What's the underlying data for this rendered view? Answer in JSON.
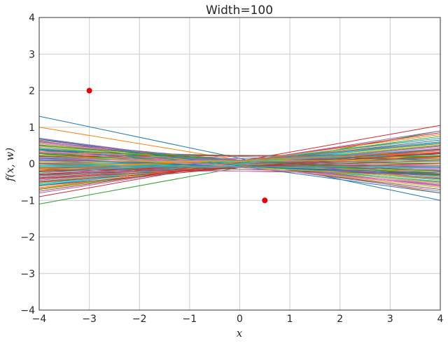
{
  "chart_data": {
    "type": "line",
    "title": "Width=100",
    "xlabel": "x",
    "ylabel": "f(x, w)",
    "xlim": [
      -4,
      4
    ],
    "ylim": [
      -4,
      4
    ],
    "xticks": [
      -4,
      -3,
      -2,
      -1,
      0,
      1,
      2,
      3,
      4
    ],
    "yticks": [
      -4,
      -3,
      -2,
      -1,
      0,
      1,
      2,
      3,
      4
    ],
    "grid": true,
    "series_count": 100,
    "series_note": "100 linear functions f(x,w), each drawn from x=-4 to x=4; values are [f(-4), f(4)]",
    "series": [
      {
        "values": [
          1.3,
          -1.0
        ]
      },
      {
        "values": [
          1.0,
          -0.8
        ]
      },
      {
        "values": [
          -1.1,
          0.9
        ]
      },
      {
        "values": [
          -0.9,
          1.05
        ]
      },
      {
        "values": [
          0.7,
          -0.75
        ]
      },
      {
        "values": [
          0.65,
          -0.6
        ]
      },
      {
        "values": [
          0.6,
          -0.55
        ]
      },
      {
        "values": [
          0.55,
          -0.5
        ]
      },
      {
        "values": [
          0.5,
          -0.45
        ]
      },
      {
        "values": [
          0.45,
          -0.4
        ]
      },
      {
        "values": [
          0.4,
          -0.35
        ]
      },
      {
        "values": [
          0.35,
          -0.3
        ]
      },
      {
        "values": [
          0.3,
          -0.25
        ]
      },
      {
        "values": [
          0.25,
          -0.2
        ]
      },
      {
        "values": [
          0.2,
          -0.15
        ]
      },
      {
        "values": [
          0.15,
          -0.1
        ]
      },
      {
        "values": [
          0.1,
          -0.05
        ]
      },
      {
        "values": [
          0.05,
          0.0
        ]
      },
      {
        "values": [
          0.0,
          0.05
        ]
      },
      {
        "values": [
          -0.05,
          0.1
        ]
      },
      {
        "values": [
          -0.1,
          0.15
        ]
      },
      {
        "values": [
          -0.15,
          0.2
        ]
      },
      {
        "values": [
          -0.2,
          0.25
        ]
      },
      {
        "values": [
          -0.25,
          0.3
        ]
      },
      {
        "values": [
          -0.3,
          0.35
        ]
      },
      {
        "values": [
          -0.35,
          0.4
        ]
      },
      {
        "values": [
          -0.4,
          0.45
        ]
      },
      {
        "values": [
          -0.45,
          0.5
        ]
      },
      {
        "values": [
          -0.5,
          0.55
        ]
      },
      {
        "values": [
          -0.55,
          0.6
        ]
      },
      {
        "values": [
          -0.6,
          0.65
        ]
      },
      {
        "values": [
          -0.65,
          0.7
        ]
      },
      {
        "values": [
          -0.7,
          0.75
        ]
      },
      {
        "values": [
          -0.75,
          0.85
        ]
      },
      {
        "values": [
          -0.8,
          0.9
        ]
      },
      {
        "values": [
          0.62,
          -0.7
        ]
      },
      {
        "values": [
          0.58,
          -0.62
        ]
      },
      {
        "values": [
          0.52,
          -0.58
        ]
      },
      {
        "values": [
          0.48,
          -0.52
        ]
      },
      {
        "values": [
          0.42,
          -0.48
        ]
      },
      {
        "values": [
          0.38,
          -0.42
        ]
      },
      {
        "values": [
          0.32,
          -0.38
        ]
      },
      {
        "values": [
          0.28,
          -0.32
        ]
      },
      {
        "values": [
          0.22,
          -0.28
        ]
      },
      {
        "values": [
          0.18,
          -0.22
        ]
      },
      {
        "values": [
          0.12,
          -0.18
        ]
      },
      {
        "values": [
          0.08,
          -0.12
        ]
      },
      {
        "values": [
          0.02,
          -0.08
        ]
      },
      {
        "values": [
          -0.02,
          0.02
        ]
      },
      {
        "values": [
          -0.08,
          0.08
        ]
      },
      {
        "values": [
          -0.12,
          0.12
        ]
      },
      {
        "values": [
          -0.18,
          0.18
        ]
      },
      {
        "values": [
          -0.22,
          0.22
        ]
      },
      {
        "values": [
          -0.28,
          0.28
        ]
      },
      {
        "values": [
          -0.32,
          0.32
        ]
      },
      {
        "values": [
          -0.38,
          0.38
        ]
      },
      {
        "values": [
          -0.42,
          0.42
        ]
      },
      {
        "values": [
          -0.48,
          0.48
        ]
      },
      {
        "values": [
          -0.52,
          0.52
        ]
      },
      {
        "values": [
          -0.58,
          0.58
        ]
      },
      {
        "values": [
          0.35,
          0.1
        ]
      },
      {
        "values": [
          0.3,
          0.15
        ]
      },
      {
        "values": [
          0.25,
          0.2
        ]
      },
      {
        "values": [
          0.2,
          0.25
        ]
      },
      {
        "values": [
          -0.1,
          -0.3
        ]
      },
      {
        "values": [
          -0.15,
          -0.25
        ]
      },
      {
        "values": [
          -0.2,
          -0.2
        ]
      },
      {
        "values": [
          0.1,
          0.3
        ]
      },
      {
        "values": [
          0.05,
          -0.2
        ]
      },
      {
        "values": [
          -0.05,
          0.25
        ]
      },
      {
        "values": [
          0.15,
          -0.3
        ]
      },
      {
        "values": [
          -0.15,
          0.35
        ]
      },
      {
        "values": [
          0.2,
          0.0
        ]
      },
      {
        "values": [
          -0.2,
          0.0
        ]
      },
      {
        "values": [
          0.0,
          0.3
        ]
      },
      {
        "values": [
          0.0,
          -0.3
        ]
      },
      {
        "values": [
          0.45,
          -0.6
        ]
      },
      {
        "values": [
          -0.45,
          0.6
        ]
      },
      {
        "values": [
          0.55,
          -0.65
        ]
      },
      {
        "values": [
          -0.55,
          0.7
        ]
      },
      {
        "values": [
          0.68,
          -0.8
        ]
      },
      {
        "values": [
          -0.68,
          0.8
        ]
      },
      {
        "values": [
          0.4,
          -0.2
        ]
      },
      {
        "values": [
          -0.4,
          0.2
        ]
      },
      {
        "values": [
          0.3,
          -0.1
        ]
      },
      {
        "values": [
          -0.3,
          0.1
        ]
      },
      {
        "values": [
          0.12,
          0.05
        ]
      },
      {
        "values": [
          -0.12,
          -0.05
        ]
      },
      {
        "values": [
          0.25,
          -0.4
        ]
      },
      {
        "values": [
          -0.25,
          0.4
        ]
      },
      {
        "values": [
          0.1,
          -0.25
        ]
      },
      {
        "values": [
          -0.1,
          0.3
        ]
      },
      {
        "values": [
          0.5,
          -0.3
        ]
      },
      {
        "values": [
          -0.5,
          0.3
        ]
      },
      {
        "values": [
          0.6,
          -0.4
        ]
      },
      {
        "values": [
          -0.6,
          0.4
        ]
      },
      {
        "values": [
          0.35,
          -0.55
        ]
      },
      {
        "values": [
          -0.35,
          0.55
        ]
      },
      {
        "values": [
          0.05,
          0.1
        ]
      },
      {
        "values": [
          -0.05,
          -0.1
        ]
      }
    ],
    "points": [
      {
        "x": -3,
        "y": 2
      },
      {
        "x": 0.5,
        "y": -1
      }
    ],
    "point_color": "#e8000b",
    "palette": [
      "#1f77b4",
      "#ff7f0e",
      "#2ca02c",
      "#d62728",
      "#9467bd",
      "#8c564b",
      "#e377c2",
      "#7f7f7f",
      "#bcbd22",
      "#17becf"
    ]
  }
}
